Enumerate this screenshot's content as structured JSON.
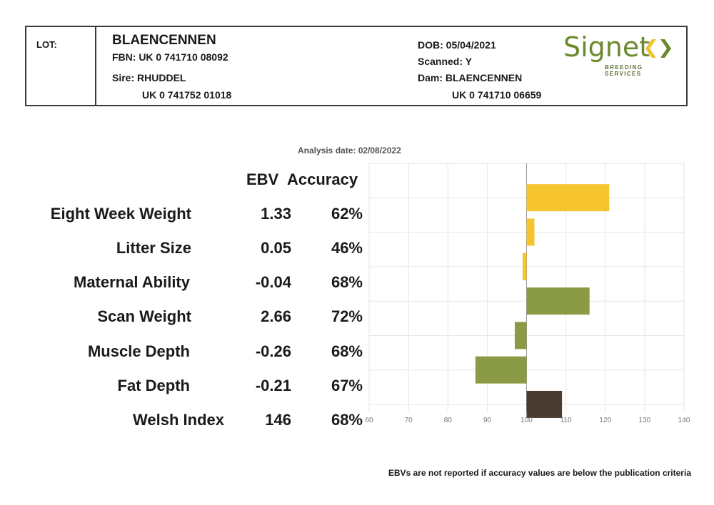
{
  "header": {
    "lot_label": "LOT:",
    "animal_name": "BLAENCENNEN",
    "fbn": "FBN: UK 0 741710 08092",
    "sire": "Sire: RHUDDEL",
    "sire_id": "UK 0 741752 01018",
    "dob": "DOB: 05/04/2021",
    "scanned": "Scanned: Y",
    "dam": "Dam: BLAENCENNEN",
    "dam_id": "UK 0 741710 06659",
    "logo_word": "Signet",
    "logo_sub": "BREEDING SERVICES",
    "logo_colors": {
      "green": "#6b8a2e",
      "yellow": "#f2c12e"
    }
  },
  "analysis_date": "Analysis date: 02/08/2022",
  "columns": {
    "ebv": "EBV",
    "accuracy": "Accuracy"
  },
  "footnote": "EBVs are not reported if accuracy values are below the publication criteria",
  "rows": [
    {
      "trait": "Eight Week Weight",
      "ebv": "1.33",
      "accuracy": "62%"
    },
    {
      "trait": "Litter Size",
      "ebv": "0.05",
      "accuracy": "46%"
    },
    {
      "trait": "Maternal Ability",
      "ebv": "-0.04",
      "accuracy": "68%"
    },
    {
      "trait": "Scan Weight",
      "ebv": "2.66",
      "accuracy": "72%"
    },
    {
      "trait": "Muscle Depth",
      "ebv": "-0.26",
      "accuracy": "68%"
    },
    {
      "trait": "Fat Depth",
      "ebv": "-0.21",
      "accuracy": "67%"
    },
    {
      "trait": "Welsh Index",
      "ebv": "146",
      "accuracy": "68%"
    }
  ],
  "chart_data": {
    "type": "bar",
    "orientation": "horizontal",
    "baseline": 100,
    "xlim": [
      60,
      140
    ],
    "x_ticks": [
      60,
      70,
      80,
      90,
      100,
      110,
      120,
      130,
      140
    ],
    "grid": true,
    "categories": [
      "Eight Week Weight",
      "Litter Size",
      "Maternal Ability",
      "Scan Weight",
      "Muscle Depth",
      "Fat Depth",
      "Welsh Index"
    ],
    "values": [
      121,
      102,
      99,
      116,
      97,
      87,
      109
    ],
    "colors": [
      "#f5c42e",
      "#f5c42e",
      "#f5c42e",
      "#8b9a45",
      "#8b9a45",
      "#8b9a45",
      "#4a3c30"
    ]
  }
}
